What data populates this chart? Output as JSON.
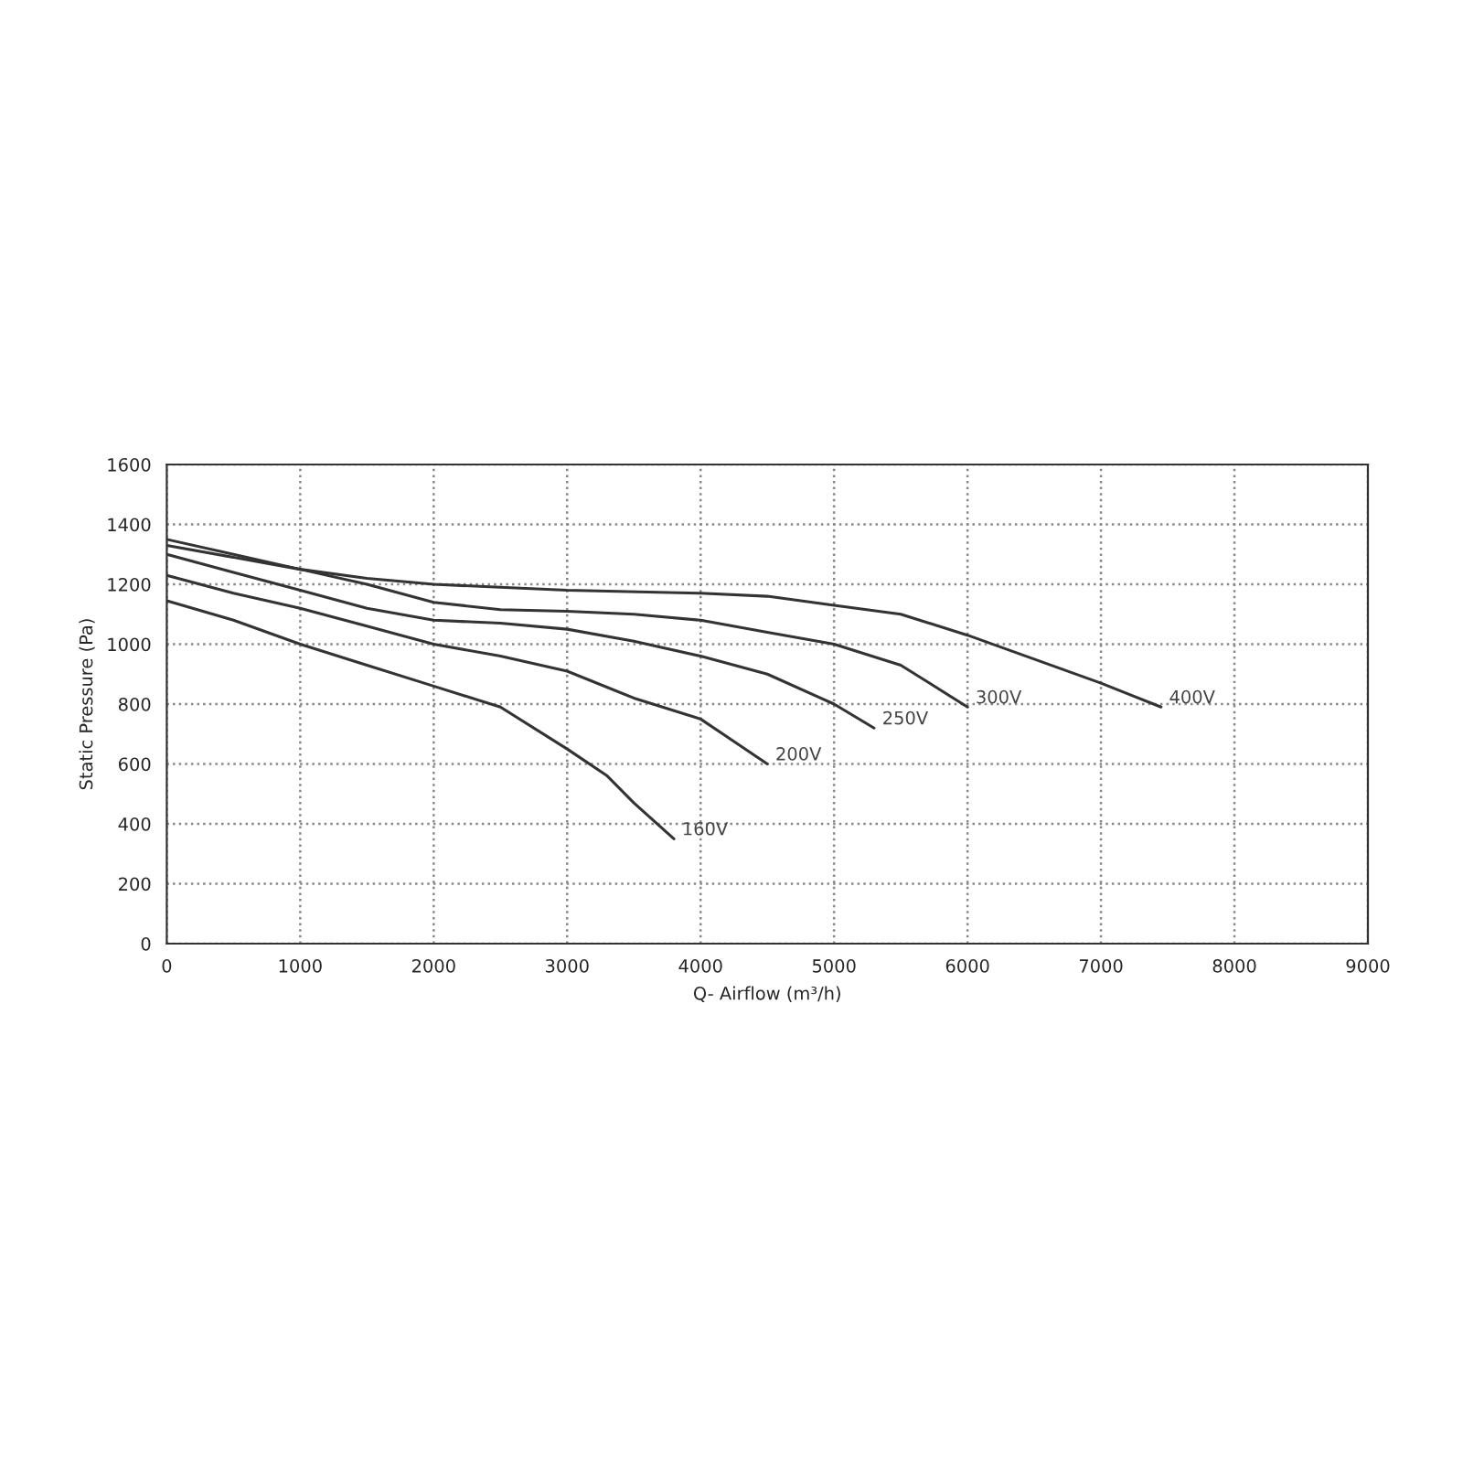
{
  "chart_data": {
    "type": "line",
    "xlabel": "Q- Airflow (m³/h)",
    "ylabel": "Static Pressure (Pa)",
    "xlim": [
      0,
      9000
    ],
    "xticks": [
      0,
      1000,
      2000,
      3000,
      4000,
      5000,
      6000,
      7000,
      8000,
      9000
    ],
    "ylim": [
      0,
      1600
    ],
    "yticks": [
      0,
      200,
      400,
      600,
      800,
      1000,
      1200,
      1400,
      1600
    ],
    "grid": true,
    "legend": false,
    "marker": "none",
    "line_style": "solid",
    "series": [
      {
        "name": "160V",
        "color": "#333333",
        "x": [
          0,
          500,
          1000,
          1500,
          2000,
          2500,
          3000,
          3300,
          3500,
          3800
        ],
        "values": [
          1145,
          1080,
          1000,
          930,
          860,
          790,
          650,
          560,
          470,
          350
        ]
      },
      {
        "name": "200V",
        "color": "#333333",
        "x": [
          0,
          500,
          1000,
          1500,
          2000,
          2500,
          3000,
          3500,
          4000,
          4200,
          4500
        ],
        "values": [
          1230,
          1170,
          1120,
          1060,
          1000,
          960,
          910,
          820,
          750,
          690,
          600
        ]
      },
      {
        "name": "250V",
        "color": "#333333",
        "x": [
          0,
          500,
          1000,
          1500,
          2000,
          2500,
          3000,
          3500,
          4000,
          4500,
          5000,
          5300
        ],
        "values": [
          1300,
          1240,
          1180,
          1120,
          1080,
          1070,
          1050,
          1010,
          960,
          900,
          800,
          720
        ]
      },
      {
        "name": "300V",
        "color": "#333333",
        "x": [
          0,
          1000,
          1500,
          2000,
          2500,
          3000,
          3500,
          4000,
          4500,
          5000,
          5500,
          6000
        ],
        "values": [
          1330,
          1250,
          1200,
          1140,
          1115,
          1110,
          1100,
          1080,
          1040,
          1000,
          930,
          790
        ]
      },
      {
        "name": "400V",
        "color": "#333333",
        "x": [
          0,
          500,
          1000,
          1500,
          2000,
          3000,
          4000,
          4500,
          5000,
          5500,
          6000,
          6500,
          7000,
          7450
        ],
        "values": [
          1350,
          1300,
          1250,
          1220,
          1200,
          1180,
          1170,
          1160,
          1130,
          1100,
          1030,
          950,
          870,
          790
        ]
      }
    ]
  }
}
